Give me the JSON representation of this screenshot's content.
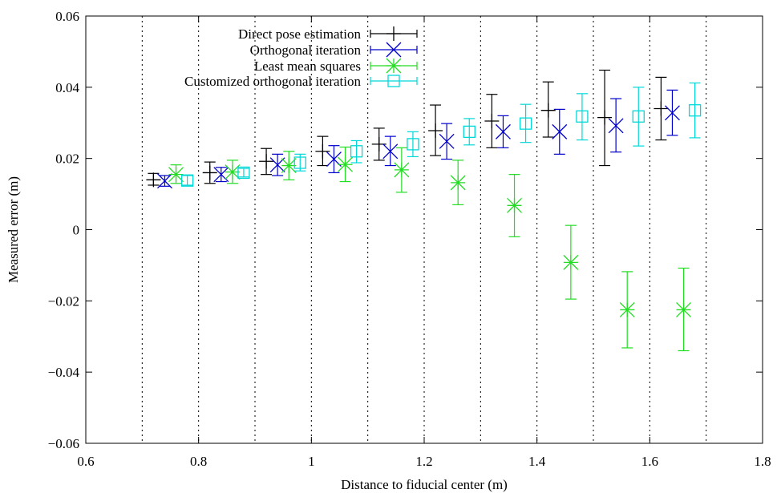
{
  "chart_data": {
    "type": "scatter",
    "xlabel": "Distance to fiducial center (m)",
    "ylabel": "Measured error (m)",
    "xlim": [
      0.6,
      1.8
    ],
    "ylim": [
      -0.06,
      0.06
    ],
    "xticks": [
      "0.6",
      "0.8",
      "1",
      "1.2",
      "1.4",
      "1.6",
      "1.8"
    ],
    "yticks": [
      "-0.06",
      "-0.04",
      "-0.02",
      "0",
      "0.02",
      "0.04",
      "0.06"
    ],
    "grid": "vertical dotted lines at x = 0.7, 0.8, ..., 1.7",
    "legend_position": "top-center",
    "error_bars": true,
    "series": [
      {
        "name": "Direct pose estimation",
        "marker": "plus",
        "color": "#000000",
        "points": [
          {
            "x": 0.72,
            "y": 0.014,
            "lo": 0.0125,
            "hi": 0.0158
          },
          {
            "x": 0.82,
            "y": 0.016,
            "lo": 0.013,
            "hi": 0.019
          },
          {
            "x": 0.92,
            "y": 0.0192,
            "lo": 0.0155,
            "hi": 0.0228
          },
          {
            "x": 1.02,
            "y": 0.022,
            "lo": 0.018,
            "hi": 0.0262
          },
          {
            "x": 1.12,
            "y": 0.024,
            "lo": 0.0195,
            "hi": 0.0285
          },
          {
            "x": 1.22,
            "y": 0.0278,
            "lo": 0.0208,
            "hi": 0.035
          },
          {
            "x": 1.32,
            "y": 0.0305,
            "lo": 0.023,
            "hi": 0.038
          },
          {
            "x": 1.42,
            "y": 0.0335,
            "lo": 0.026,
            "hi": 0.0415
          },
          {
            "x": 1.52,
            "y": 0.0315,
            "lo": 0.018,
            "hi": 0.0448
          },
          {
            "x": 1.62,
            "y": 0.034,
            "lo": 0.0252,
            "hi": 0.0428
          }
        ]
      },
      {
        "name": "Orthogonal iteration",
        "marker": "cross",
        "color": "#0000cc",
        "points": [
          {
            "x": 0.74,
            "y": 0.0137,
            "lo": 0.0122,
            "hi": 0.0152
          },
          {
            "x": 0.84,
            "y": 0.0155,
            "lo": 0.0135,
            "hi": 0.0175
          },
          {
            "x": 0.94,
            "y": 0.0182,
            "lo": 0.0152,
            "hi": 0.0212
          },
          {
            "x": 1.04,
            "y": 0.0198,
            "lo": 0.016,
            "hi": 0.0236
          },
          {
            "x": 1.14,
            "y": 0.022,
            "lo": 0.018,
            "hi": 0.0262
          },
          {
            "x": 1.24,
            "y": 0.0248,
            "lo": 0.0198,
            "hi": 0.0298
          },
          {
            "x": 1.34,
            "y": 0.0275,
            "lo": 0.023,
            "hi": 0.032
          },
          {
            "x": 1.44,
            "y": 0.0275,
            "lo": 0.0212,
            "hi": 0.0338
          },
          {
            "x": 1.54,
            "y": 0.0292,
            "lo": 0.0218,
            "hi": 0.0368
          },
          {
            "x": 1.64,
            "y": 0.0328,
            "lo": 0.0265,
            "hi": 0.0392
          }
        ]
      },
      {
        "name": "Least mean squares",
        "marker": "star",
        "color": "#22dd22",
        "points": [
          {
            "x": 0.76,
            "y": 0.0155,
            "lo": 0.013,
            "hi": 0.0182
          },
          {
            "x": 0.86,
            "y": 0.0162,
            "lo": 0.013,
            "hi": 0.0195
          },
          {
            "x": 0.96,
            "y": 0.018,
            "lo": 0.014,
            "hi": 0.022
          },
          {
            "x": 1.06,
            "y": 0.0183,
            "lo": 0.0135,
            "hi": 0.0232
          },
          {
            "x": 1.16,
            "y": 0.0168,
            "lo": 0.0105,
            "hi": 0.023
          },
          {
            "x": 1.26,
            "y": 0.0132,
            "lo": 0.007,
            "hi": 0.0195
          },
          {
            "x": 1.36,
            "y": 0.0068,
            "lo": -0.002,
            "hi": 0.0155
          },
          {
            "x": 1.46,
            "y": -0.0092,
            "lo": -0.0195,
            "hi": 0.0012
          },
          {
            "x": 1.56,
            "y": -0.0225,
            "lo": -0.0332,
            "hi": -0.0118
          },
          {
            "x": 1.66,
            "y": -0.0225,
            "lo": -0.034,
            "hi": -0.0108
          }
        ]
      },
      {
        "name": "Customized orthogonal iteration",
        "marker": "box",
        "color": "#00d8d8",
        "points": [
          {
            "x": 0.78,
            "y": 0.0138,
            "lo": 0.0125,
            "hi": 0.0152
          },
          {
            "x": 0.88,
            "y": 0.016,
            "lo": 0.0148,
            "hi": 0.0172
          },
          {
            "x": 0.98,
            "y": 0.0188,
            "lo": 0.0165,
            "hi": 0.0212
          },
          {
            "x": 1.08,
            "y": 0.022,
            "lo": 0.0188,
            "hi": 0.025
          },
          {
            "x": 1.18,
            "y": 0.024,
            "lo": 0.0205,
            "hi": 0.0275
          },
          {
            "x": 1.28,
            "y": 0.0275,
            "lo": 0.0238,
            "hi": 0.0312
          },
          {
            "x": 1.38,
            "y": 0.0298,
            "lo": 0.0245,
            "hi": 0.0352
          },
          {
            "x": 1.48,
            "y": 0.0318,
            "lo": 0.0252,
            "hi": 0.0382
          },
          {
            "x": 1.58,
            "y": 0.0318,
            "lo": 0.0235,
            "hi": 0.04
          },
          {
            "x": 1.68,
            "y": 0.0335,
            "lo": 0.0258,
            "hi": 0.0412
          }
        ]
      }
    ]
  }
}
